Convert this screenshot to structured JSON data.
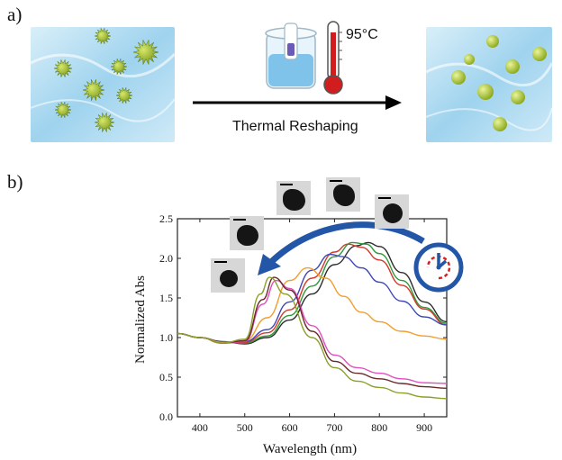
{
  "panels": {
    "a": "a)",
    "b": "b)"
  },
  "process": {
    "temperature": "95°C",
    "label": "Thermal Reshaping"
  },
  "colors": {
    "nanostar": "#9bb81a",
    "water": "#bfe1f3"
  },
  "icons": [
    "beaker-icon",
    "thermometer-icon",
    "clock-icon",
    "curved-arrow-icon"
  ],
  "chart_data": {
    "type": "line",
    "xlabel": "Wavelength (nm)",
    "ylabel": "Normalized Abs",
    "xlim": [
      350,
      950
    ],
    "ylim": [
      0,
      2.5
    ],
    "xticks": [
      "400",
      "500",
      "600",
      "700",
      "800",
      "900"
    ],
    "yticks": [
      "0.0",
      "0.5",
      "1.0",
      "1.5",
      "2.0",
      "2.5"
    ],
    "grid": false,
    "legend": "none",
    "series": [
      {
        "color": "#2b2b2b",
        "x": [
          350,
          400,
          450,
          500,
          550,
          600,
          650,
          700,
          750,
          775,
          800,
          850,
          900,
          950
        ],
        "y": [
          1.05,
          1.0,
          0.95,
          0.92,
          1.0,
          1.22,
          1.55,
          1.92,
          2.16,
          2.2,
          2.15,
          1.82,
          1.45,
          1.2
        ]
      },
      {
        "color": "#2e9a3a",
        "x": [
          350,
          400,
          450,
          500,
          550,
          600,
          650,
          700,
          740,
          770,
          800,
          850,
          900,
          950
        ],
        "y": [
          1.05,
          1.0,
          0.94,
          0.93,
          1.02,
          1.28,
          1.65,
          2.02,
          2.2,
          2.18,
          2.06,
          1.72,
          1.38,
          1.18
        ]
      },
      {
        "color": "#d13a2a",
        "x": [
          350,
          400,
          450,
          500,
          550,
          600,
          650,
          700,
          730,
          760,
          800,
          850,
          900,
          950
        ],
        "y": [
          1.05,
          1.0,
          0.94,
          0.94,
          1.06,
          1.35,
          1.75,
          2.08,
          2.18,
          2.14,
          1.98,
          1.66,
          1.36,
          1.16
        ]
      },
      {
        "color": "#3f47b8",
        "x": [
          350,
          400,
          450,
          500,
          550,
          600,
          650,
          690,
          720,
          760,
          800,
          850,
          900,
          950
        ],
        "y": [
          1.05,
          1.0,
          0.94,
          0.95,
          1.1,
          1.45,
          1.85,
          2.05,
          2.02,
          1.88,
          1.7,
          1.46,
          1.26,
          1.16
        ]
      },
      {
        "color": "#f29e2e",
        "x": [
          350,
          400,
          450,
          500,
          550,
          600,
          640,
          680,
          720,
          760,
          800,
          850,
          900,
          950
        ],
        "y": [
          1.05,
          1.0,
          0.94,
          0.96,
          1.25,
          1.72,
          1.88,
          1.75,
          1.52,
          1.32,
          1.2,
          1.08,
          1.02,
          0.98
        ]
      },
      {
        "color": "#e04fbf",
        "x": [
          350,
          400,
          450,
          500,
          540,
          570,
          600,
          650,
          700,
          750,
          800,
          850,
          900,
          950
        ],
        "y": [
          1.05,
          1.0,
          0.93,
          0.95,
          1.42,
          1.72,
          1.62,
          1.15,
          0.78,
          0.62,
          0.55,
          0.48,
          0.43,
          0.42
        ]
      },
      {
        "color": "#6a2a2a",
        "x": [
          350,
          400,
          450,
          500,
          540,
          565,
          600,
          650,
          700,
          750,
          800,
          850,
          900,
          950
        ],
        "y": [
          1.05,
          1.0,
          0.93,
          0.96,
          1.48,
          1.76,
          1.6,
          1.08,
          0.7,
          0.55,
          0.48,
          0.42,
          0.38,
          0.36
        ]
      },
      {
        "color": "#8aa12a",
        "x": [
          350,
          400,
          450,
          500,
          535,
          555,
          590,
          650,
          700,
          750,
          800,
          850,
          900,
          950
        ],
        "y": [
          1.05,
          1.0,
          0.93,
          0.98,
          1.55,
          1.76,
          1.55,
          1.0,
          0.62,
          0.45,
          0.37,
          0.3,
          0.25,
          0.23
        ]
      }
    ]
  }
}
